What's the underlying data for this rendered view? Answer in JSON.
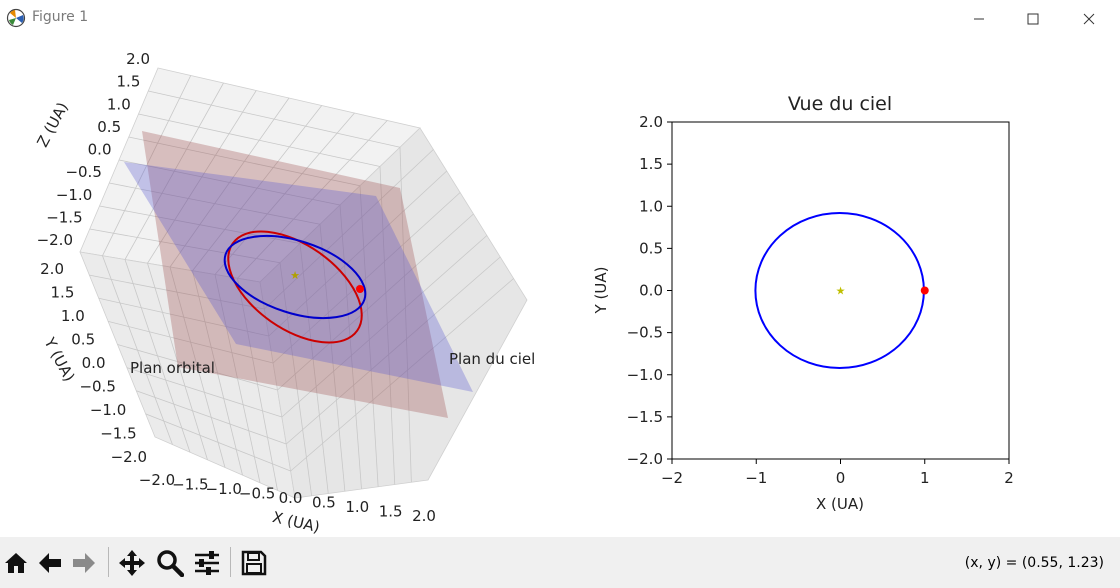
{
  "window": {
    "title": "Figure 1",
    "icon": "matplotlib-icon",
    "controls": [
      "minimize-icon",
      "maximize-icon",
      "close-icon"
    ]
  },
  "toolbar": {
    "buttons": [
      {
        "name": "home-icon",
        "label": "Home"
      },
      {
        "name": "back-icon",
        "label": "Back"
      },
      {
        "name": "forward-icon",
        "label": "Forward"
      },
      {
        "name": "pan-icon",
        "label": "Pan"
      },
      {
        "name": "zoom-icon",
        "label": "Zoom"
      },
      {
        "name": "configure-subplots-icon",
        "label": "Configure subplots"
      },
      {
        "name": "save-icon",
        "label": "Save"
      }
    ],
    "coords": "(x, y) = (0.55, 1.23)"
  },
  "chart_data": [
    {
      "type": "3d-line",
      "title": "",
      "xlabel": "X (UA)",
      "ylabel": "Y (UA)",
      "zlabel": "Z (UA)",
      "x_ticks": [
        "−2.0",
        "−1.5",
        "−1.0",
        "−0.5",
        "0.0",
        "0.5",
        "1.0",
        "1.5",
        "2.0"
      ],
      "y_ticks": [
        "−2.0",
        "−1.5",
        "−1.0",
        "−0.5",
        "0.0",
        "0.5",
        "1.0",
        "1.5",
        "2.0"
      ],
      "z_ticks": [
        "−2.0",
        "−1.5",
        "−1.0",
        "−0.5",
        "0.0",
        "0.5",
        "1.0",
        "1.5",
        "2.0"
      ],
      "xlim": [
        -2,
        2
      ],
      "ylim": [
        -2,
        2
      ],
      "zlim": [
        -2,
        2
      ],
      "annotations": [
        "Plan orbital",
        "Plan du ciel"
      ],
      "colors": {
        "orbit_true": "#cc0000",
        "orbit_sky": "#0000cc",
        "plane_orbital": "#a05050",
        "plane_sky": "#5a5ad0",
        "planet": "#ff0000",
        "star": "#b0a000"
      },
      "grid": true
    },
    {
      "type": "line",
      "title": "Vue du ciel",
      "xlabel": "X (UA)",
      "ylabel": "Y (UA)",
      "xlim": [
        -2,
        2
      ],
      "ylim": [
        -2,
        2
      ],
      "x_ticks": [
        "−2",
        "−1",
        "0",
        "1",
        "2"
      ],
      "y_ticks": [
        "2.0",
        "1.5",
        "1.0",
        "0.5",
        "0.0",
        "−0.5",
        "−1.0",
        "−1.5",
        "−2.0"
      ],
      "y_tick_values": [
        2.0,
        1.5,
        1.0,
        0.5,
        0.0,
        -0.5,
        -1.0,
        -1.5,
        -2.0
      ],
      "x_tick_values": [
        -2,
        -1,
        0,
        1,
        2
      ],
      "series": [
        {
          "type": "ellipse",
          "cx": -0.01,
          "cy": 0.0,
          "rx": 1.0,
          "ry": 0.92,
          "color": "#0000ff"
        }
      ],
      "points": [
        {
          "x": 1.0,
          "y": 0.0,
          "color": "#ff0000",
          "marker": "circle"
        },
        {
          "x": 0.0,
          "y": 0.0,
          "color": "#bfbf00",
          "marker": "star"
        }
      ],
      "grid": false
    }
  ]
}
